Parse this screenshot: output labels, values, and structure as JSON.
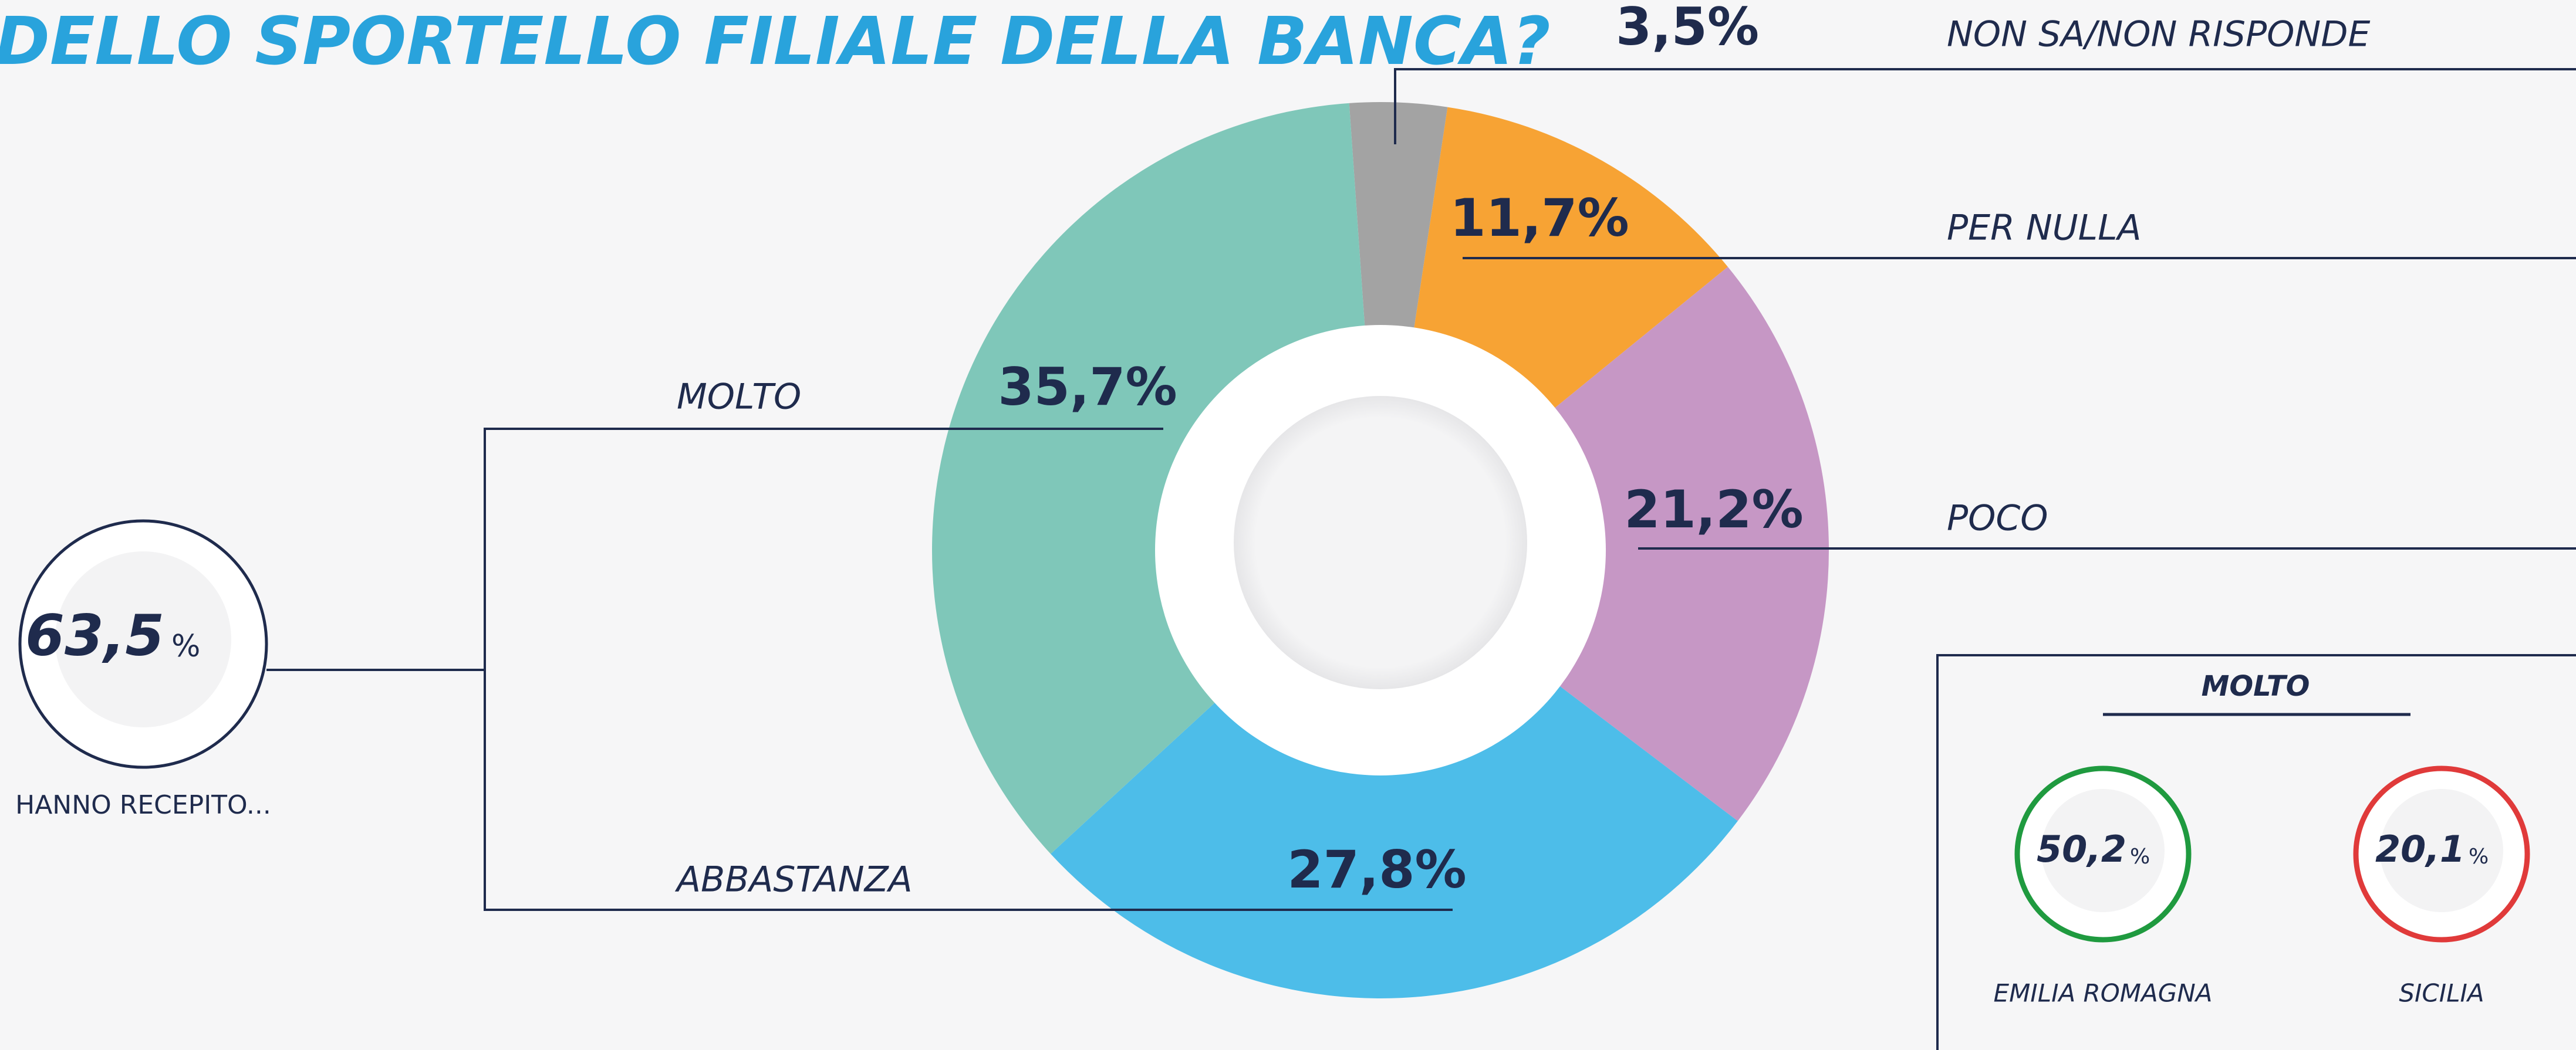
{
  "chart_data": {
    "type": "pie",
    "title": "DELLO SPORTELLO FILIALE DELLA BANCA?",
    "categories": [
      "NON SA/NON RISPONDE",
      "PER NULLA",
      "POCO",
      "ABBASTANZA",
      "MOLTO"
    ],
    "values": [
      3.5,
      11.7,
      21.2,
      27.8,
      35.7
    ],
    "value_labels": [
      "3,5%",
      "11,7%",
      "21,2%",
      "27,8%",
      "35,7%"
    ],
    "colors": [
      "#a3a3a3",
      "#f7a334",
      "#c697c5",
      "#4dbde9",
      "#7fc7b9"
    ],
    "donut": true,
    "annotations": {
      "total": {
        "label": "63,5",
        "unit": "%",
        "caption": "HANNO RECEPITO..."
      },
      "box": {
        "title": "MOLTO",
        "regions": [
          {
            "label": "50,2",
            "unit": "%",
            "name": "EMILIA ROMAGNA",
            "color": "#1f9a3f"
          },
          {
            "label": "20,1",
            "unit": "%",
            "name": "SICILIA",
            "color": "#e03a3a"
          }
        ]
      }
    }
  }
}
